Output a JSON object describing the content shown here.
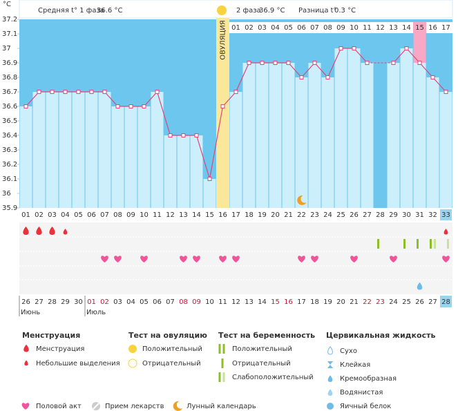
{
  "header": {
    "phase1_label": "Средняя t° 1 фаза",
    "phase1_value": "36.6 °C",
    "phase2_label": "2 фаза",
    "phase2_value": "36.9 °C",
    "diff_label": "Разница t°",
    "diff_value": "0.3 °C"
  },
  "chart_data": {
    "type": "line",
    "y_unit": "°C",
    "ylim": [
      35.9,
      37.2
    ],
    "yticks": [
      35.9,
      36,
      36.1,
      36.2,
      36.3,
      36.4,
      36.5,
      36.6,
      36.7,
      36.8,
      36.9,
      37,
      37.1,
      37.2
    ],
    "categories": [
      "01",
      "02",
      "03",
      "04",
      "05",
      "06",
      "07",
      "08",
      "09",
      "10",
      "11",
      "12",
      "13",
      "14",
      "15",
      "16",
      "17",
      "18",
      "19",
      "20",
      "21",
      "22",
      "23",
      "24",
      "25",
      "26",
      "27",
      "28",
      "29",
      "30",
      "31",
      "32",
      "33"
    ],
    "values": [
      36.6,
      36.7,
      36.7,
      36.7,
      36.7,
      36.7,
      36.7,
      36.6,
      36.6,
      36.6,
      36.7,
      36.4,
      36.4,
      36.4,
      36.1,
      36.6,
      36.7,
      36.9,
      36.9,
      36.9,
      36.9,
      36.8,
      36.9,
      36.8,
      37,
      37,
      36.9,
      null,
      36.9,
      37,
      36.9,
      36.8,
      36.7
    ],
    "color": "#e0457b",
    "dates": [
      "26",
      "27",
      "28",
      "29",
      "30",
      "01",
      "02",
      "03",
      "04",
      "05",
      "06",
      "07",
      "08",
      "09",
      "10",
      "11",
      "12",
      "13",
      "14",
      "15",
      "16",
      "17",
      "18",
      "19",
      "20",
      "21",
      "22",
      "23",
      "24",
      "25",
      "26",
      "27",
      "28"
    ],
    "weekend_columns": [
      6,
      7,
      13,
      14,
      20,
      21,
      27,
      28
    ],
    "months": [
      {
        "label": "Июнь",
        "column": 1
      },
      {
        "label": "Июль",
        "column": 6
      }
    ],
    "ovulation_day": 16,
    "ovulation_label": "ОВУЛЯЦИЯ",
    "phase2_days": [
      "01",
      "02",
      "03",
      "04",
      "05",
      "06",
      "07",
      "08",
      "09",
      "10",
      "11",
      "12",
      "13",
      "14",
      "15",
      "16",
      "17"
    ],
    "phase2_highlight": "15",
    "current_day": 33
  },
  "markers": {
    "menstruation_heavy": [
      1,
      2,
      3
    ],
    "menstruation_light": [
      4,
      33
    ],
    "pregnancy_positive": [
      28,
      30,
      31,
      32
    ],
    "pregnancy_weak": [
      32,
      33
    ],
    "intercourse": [
      7,
      8,
      10,
      13,
      14,
      16,
      17,
      22,
      23,
      26,
      29,
      33
    ],
    "cervical_creamy": [
      31
    ],
    "moon": [
      22
    ]
  },
  "legend": {
    "menstruation": {
      "title": "Менструация",
      "items": [
        "Менструация",
        "Небольшие выделения"
      ]
    },
    "ovulation_test": {
      "title": "Тест на овуляцию",
      "items": [
        "Положительный",
        "Отрицательный"
      ]
    },
    "pregnancy_test": {
      "title": "Тест на беременность",
      "items": [
        "Положительный",
        "Отрицательный",
        "Слабоположительный"
      ]
    },
    "cervical": {
      "title": "Цервикальная жидкость",
      "items": [
        "Сухо",
        "Клейкая",
        "Кремообразная",
        "Водянистая",
        "Яичный белок"
      ]
    },
    "other": [
      "Половой акт",
      "Прием лекарств",
      "Лунный календарь"
    ]
  }
}
